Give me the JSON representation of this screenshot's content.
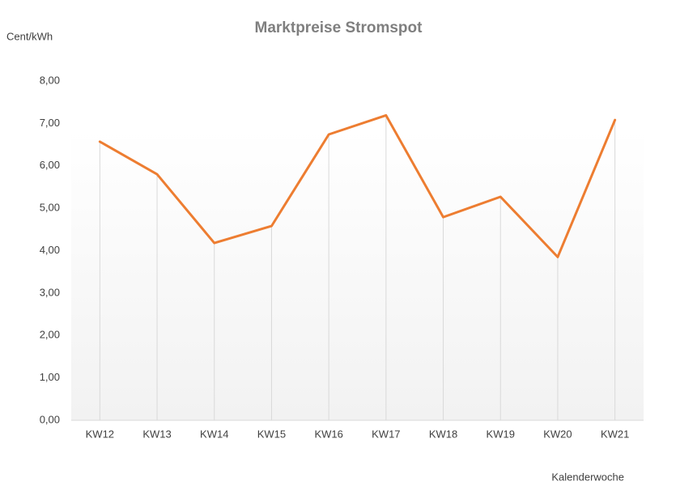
{
  "chart_data": {
    "type": "line",
    "title": "Marktpreise Stromspot",
    "y_label": "Cent/kWh",
    "x_label": "Kalenderwoche",
    "categories": [
      "KW12",
      "KW13",
      "KW14",
      "KW15",
      "KW16",
      "KW17",
      "KW18",
      "KW19",
      "KW20",
      "KW21"
    ],
    "series": [
      {
        "name": "Marktpreise",
        "color": "#ed7d31",
        "values": [
          6.57,
          5.8,
          4.18,
          4.58,
          6.74,
          7.19,
          4.79,
          5.27,
          3.85,
          7.08
        ]
      }
    ],
    "ylim": [
      0,
      8
    ],
    "yticks": [
      {
        "value": 0,
        "label": "0,00"
      },
      {
        "value": 1,
        "label": "1,00"
      },
      {
        "value": 2,
        "label": "2,00"
      },
      {
        "value": 3,
        "label": "3,00"
      },
      {
        "value": 4,
        "label": "4,00"
      },
      {
        "value": 5,
        "label": "5,00"
      },
      {
        "value": 6,
        "label": "6,00"
      },
      {
        "value": 7,
        "label": "7,00"
      },
      {
        "value": 8,
        "label": "8,00"
      }
    ],
    "grid": false,
    "drop_lines": true,
    "legend": false
  }
}
